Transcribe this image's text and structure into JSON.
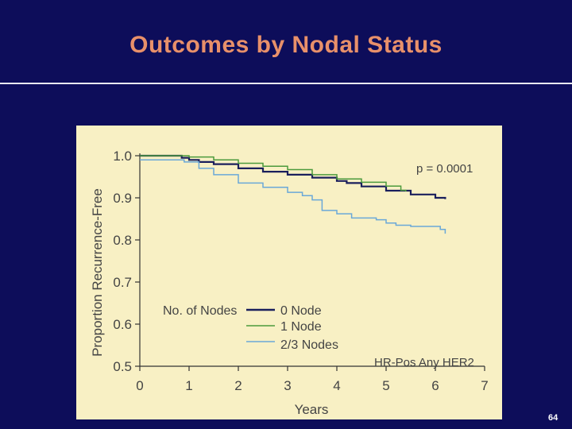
{
  "slide": {
    "title": "Outcomes by Nodal Status",
    "page_number": "64",
    "background_color": "#0d0d5a",
    "title_color": "#e8906a",
    "panel_color": "#f8f0c4"
  },
  "chart_data": {
    "type": "line",
    "title": "",
    "xlabel": "Years",
    "ylabel": "Proportion Recurrence-Free",
    "xlim": [
      0,
      7
    ],
    "ylim": [
      0.5,
      1.0
    ],
    "x_ticks": [
      "0",
      "1",
      "2",
      "3",
      "4",
      "5",
      "6",
      "7"
    ],
    "y_ticks": [
      "1.0",
      "0.9",
      "0.8",
      "0.7",
      "0.6",
      "0.5"
    ],
    "annotation_p": "p = 0.0001",
    "annotation_subset": "HR-Pos Any HER2",
    "legend_title": "No. of Nodes",
    "series": [
      {
        "name": "0 Node",
        "color": "#1a1f5c",
        "points": [
          [
            0,
            1.0
          ],
          [
            0.85,
            0.995
          ],
          [
            1.0,
            0.99
          ],
          [
            1.2,
            0.985
          ],
          [
            1.5,
            0.98
          ],
          [
            2.0,
            0.97
          ],
          [
            2.5,
            0.962
          ],
          [
            3.0,
            0.955
          ],
          [
            3.5,
            0.948
          ],
          [
            4.0,
            0.94
          ],
          [
            4.2,
            0.935
          ],
          [
            4.5,
            0.927
          ],
          [
            5.0,
            0.917
          ],
          [
            5.5,
            0.908
          ],
          [
            6.0,
            0.9
          ],
          [
            6.2,
            0.897
          ]
        ]
      },
      {
        "name": "1 Node",
        "color": "#4c9a3c",
        "points": [
          [
            0,
            1.0
          ],
          [
            1.0,
            0.997
          ],
          [
            1.5,
            0.99
          ],
          [
            2.0,
            0.982
          ],
          [
            2.5,
            0.975
          ],
          [
            3.0,
            0.967
          ],
          [
            3.5,
            0.955
          ],
          [
            4.0,
            0.945
          ],
          [
            4.5,
            0.937
          ],
          [
            5.0,
            0.928
          ],
          [
            5.3,
            0.918
          ],
          [
            5.4,
            0.915
          ]
        ]
      },
      {
        "name": "2/3 Nodes",
        "color": "#6aa8d8",
        "points": [
          [
            0,
            0.99
          ],
          [
            0.6,
            0.99
          ],
          [
            0.9,
            0.985
          ],
          [
            1.2,
            0.97
          ],
          [
            1.5,
            0.955
          ],
          [
            2.0,
            0.935
          ],
          [
            2.5,
            0.925
          ],
          [
            3.0,
            0.913
          ],
          [
            3.3,
            0.905
          ],
          [
            3.5,
            0.895
          ],
          [
            3.7,
            0.87
          ],
          [
            4.0,
            0.862
          ],
          [
            4.3,
            0.852
          ],
          [
            4.8,
            0.848
          ],
          [
            5.0,
            0.84
          ],
          [
            5.2,
            0.835
          ],
          [
            5.5,
            0.832
          ],
          [
            6.0,
            0.832
          ],
          [
            6.1,
            0.825
          ],
          [
            6.2,
            0.815
          ]
        ]
      }
    ]
  }
}
